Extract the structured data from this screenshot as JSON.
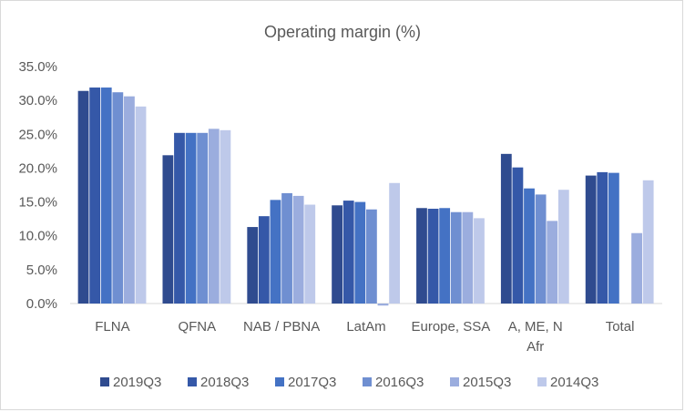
{
  "chart_data": {
    "type": "bar",
    "title": "Operating margin (%)",
    "xlabel": "",
    "ylabel": "",
    "ylim": [
      0,
      35
    ],
    "y_ticks": [
      "0.0%",
      "5.0%",
      "10.0%",
      "15.0%",
      "20.0%",
      "25.0%",
      "30.0%",
      "35.0%"
    ],
    "categories": [
      [
        "FLNA"
      ],
      [
        "QFNA"
      ],
      [
        "NAB / PBNA"
      ],
      [
        "LatAm"
      ],
      [
        "Europe, SSA"
      ],
      [
        "A, ME, N",
        "Afr"
      ],
      [
        "Total"
      ]
    ],
    "series": [
      {
        "name": "2019Q3",
        "color": "#2f4b8f",
        "values": [
          31.4,
          21.9,
          11.3,
          14.5,
          14.1,
          22.1,
          18.9
        ]
      },
      {
        "name": "2018Q3",
        "color": "#3558a8",
        "values": [
          31.9,
          25.2,
          12.9,
          15.2,
          14.0,
          20.1,
          19.4
        ]
      },
      {
        "name": "2017Q3",
        "color": "#4472c4",
        "values": [
          31.9,
          25.2,
          15.3,
          15.0,
          14.1,
          17.0,
          19.3
        ]
      },
      {
        "name": "2016Q3",
        "color": "#6f8fd1",
        "values": [
          31.2,
          25.2,
          16.3,
          13.9,
          13.5,
          16.1,
          null
        ]
      },
      {
        "name": "2015Q3",
        "color": "#9badde",
        "values": [
          30.6,
          25.8,
          15.9,
          -0.3,
          13.5,
          12.2,
          10.4
        ]
      },
      {
        "name": "2014Q3",
        "color": "#bec9ea",
        "values": [
          29.1,
          25.6,
          14.6,
          17.8,
          12.6,
          16.8,
          18.2
        ]
      }
    ],
    "grid": false,
    "legend_position": "bottom"
  }
}
